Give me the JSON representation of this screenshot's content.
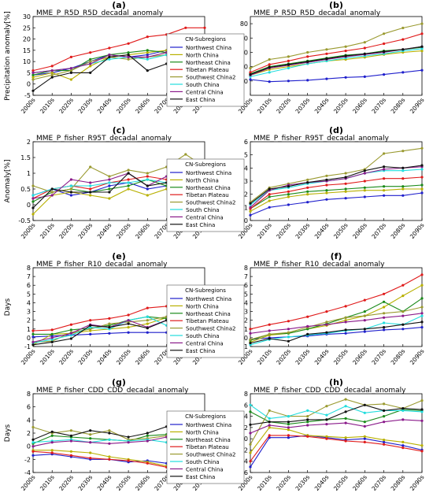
{
  "regions": [
    "Northwest China",
    "North China",
    "Northeast China",
    "Tibetan Plateau",
    "Southwest China2",
    "South China",
    "Central China",
    "East China"
  ],
  "colors": [
    "#1f1fcc",
    "#b8b000",
    "#1a8a1a",
    "#e01a1a",
    "#9a9a30",
    "#22dddd",
    "#8a1a8a",
    "#111111"
  ],
  "legend_title": "CN-Subregions",
  "x_ticks": [
    "2000s",
    "2010s",
    "2020s",
    "2030s",
    "2040s",
    "2050s",
    "2060s",
    "2070s",
    "2080s",
    "2090s"
  ],
  "chart_data": [
    {
      "type": "line",
      "letter": "(a)",
      "title": "MME_P_R5D_R5D_decadal_anomaly",
      "ylabel": "Precipitation anomaly[%]",
      "ylim": [
        -5,
        30
      ],
      "yticks": [
        -5,
        0,
        5,
        10,
        15,
        20,
        25,
        30
      ],
      "legend": false,
      "series": [
        {
          "name": "Northwest China",
          "values": [
            4,
            5,
            7,
            10,
            13,
            12,
            13,
            15,
            15,
            16
          ]
        },
        {
          "name": "North China",
          "values": [
            3,
            5,
            2,
            8,
            12,
            13,
            14,
            15,
            14,
            17
          ]
        },
        {
          "name": "Northeast China",
          "values": [
            4,
            6,
            6,
            11,
            13,
            14,
            15,
            14,
            16,
            18
          ]
        },
        {
          "name": "Tibetan Plateau",
          "values": [
            6,
            8,
            12,
            14,
            16,
            18,
            21,
            22,
            25,
            25
          ]
        },
        {
          "name": "Southwest China2",
          "values": [
            2,
            4,
            6,
            10,
            12,
            11,
            12,
            13,
            14,
            15
          ]
        },
        {
          "name": "South China",
          "values": [
            5,
            6,
            7,
            9,
            11,
            12,
            11,
            13,
            13,
            14
          ]
        },
        {
          "name": "Central China",
          "values": [
            5,
            6,
            7,
            9,
            13,
            12,
            12,
            14,
            14,
            16
          ]
        },
        {
          "name": "East China",
          "values": [
            -3,
            3,
            5,
            5,
            12,
            13,
            6,
            9,
            14,
            13
          ]
        }
      ]
    },
    {
      "type": "line",
      "letter": "(b)",
      "title": "MME_P_R5D_R5D_decadal_anomaly",
      "ylabel": "",
      "ylim": [
        -20,
        90
      ],
      "yticks": [
        0,
        20,
        40,
        60,
        80
      ],
      "legend": true,
      "series": [
        {
          "name": "Northwest China",
          "values": [
            2,
            -1,
            0,
            1,
            3,
            5,
            6,
            9,
            12,
            15
          ]
        },
        {
          "name": "North China",
          "values": [
            8,
            16,
            20,
            24,
            28,
            30,
            33,
            37,
            40,
            42
          ]
        },
        {
          "name": "Northeast China",
          "values": [
            10,
            20,
            24,
            28,
            32,
            36,
            38,
            42,
            44,
            47
          ]
        },
        {
          "name": "Tibetan Plateau",
          "values": [
            12,
            23,
            28,
            34,
            38,
            42,
            46,
            52,
            58,
            66
          ]
        },
        {
          "name": "Southwest China2",
          "values": [
            18,
            30,
            34,
            40,
            44,
            48,
            54,
            66,
            74,
            80
          ]
        },
        {
          "name": "South China",
          "values": [
            6,
            12,
            18,
            24,
            28,
            32,
            35,
            38,
            42,
            45
          ]
        },
        {
          "name": "Central China",
          "values": [
            8,
            18,
            22,
            26,
            30,
            34,
            37,
            40,
            44,
            48
          ]
        },
        {
          "name": "East China",
          "values": [
            9,
            19,
            23,
            27,
            31,
            35,
            38,
            41,
            44,
            48
          ]
        }
      ]
    },
    {
      "type": "line",
      "letter": "(c)",
      "title": "MME_P_fisher_R95T_decadal_anomaly",
      "ylabel": "Anomaly[%]",
      "ylim": [
        -0.5,
        2.0
      ],
      "yticks": [
        -0.5,
        0.0,
        0.5,
        1.0,
        1.5,
        2.0
      ],
      "legend": false,
      "series": [
        {
          "name": "Northwest China",
          "values": [
            0.3,
            0.5,
            0.3,
            0.4,
            0.6,
            0.7,
            0.5,
            0.6,
            0.7,
            0.7
          ]
        },
        {
          "name": "North China",
          "values": [
            -0.3,
            0.3,
            0.4,
            0.3,
            0.2,
            0.5,
            0.3,
            0.5,
            0.4,
            0.2
          ]
        },
        {
          "name": "Northeast China",
          "values": [
            0.1,
            0.4,
            0.5,
            0.4,
            0.5,
            0.6,
            0.8,
            0.6,
            0.7,
            0.9
          ]
        },
        {
          "name": "Tibetan Plateau",
          "values": [
            0.2,
            0.5,
            0.6,
            0.5,
            0.7,
            0.8,
            0.9,
            0.8,
            0.8,
            0.8
          ]
        },
        {
          "name": "Southwest China2",
          "values": [
            0.6,
            0.4,
            0.5,
            1.2,
            0.9,
            1.1,
            1.0,
            1.2,
            1.6,
            1.2
          ]
        },
        {
          "name": "South China",
          "values": [
            0.3,
            0.5,
            0.6,
            0.6,
            0.7,
            0.7,
            0.8,
            0.7,
            0.8,
            0.8
          ]
        },
        {
          "name": "Central China",
          "values": [
            0.2,
            0.3,
            0.8,
            0.7,
            0.8,
            1.0,
            0.6,
            0.9,
            0.8,
            0.8
          ]
        },
        {
          "name": "East China",
          "values": [
            -0.1,
            0.5,
            0.4,
            0.4,
            0.4,
            1.0,
            0.6,
            0.7,
            0.8,
            1.2
          ]
        }
      ]
    },
    {
      "type": "line",
      "letter": "(d)",
      "title": "MME_P_fisher_R95T_decadal_anomaly",
      "ylabel": "",
      "ylim": [
        0,
        6
      ],
      "yticks": [
        0,
        1,
        2,
        3,
        4,
        5,
        6
      ],
      "legend": true,
      "series": [
        {
          "name": "Northwest China",
          "values": [
            0.4,
            1.0,
            1.2,
            1.4,
            1.6,
            1.7,
            1.8,
            1.9,
            1.9,
            2.1
          ]
        },
        {
          "name": "North China",
          "values": [
            0.7,
            1.5,
            1.8,
            2.0,
            2.1,
            2.2,
            2.3,
            2.3,
            2.4,
            2.4
          ]
        },
        {
          "name": "Northeast China",
          "values": [
            0.9,
            1.8,
            2.0,
            2.2,
            2.3,
            2.4,
            2.5,
            2.6,
            2.6,
            2.7
          ]
        },
        {
          "name": "Tibetan Plateau",
          "values": [
            0.9,
            2.0,
            2.2,
            2.5,
            2.7,
            2.8,
            3.0,
            3.2,
            3.2,
            3.3
          ]
        },
        {
          "name": "Southwest China2",
          "values": [
            1.4,
            2.5,
            2.8,
            3.1,
            3.4,
            3.6,
            3.9,
            5.1,
            5.3,
            5.5
          ]
        },
        {
          "name": "South China",
          "values": [
            1.2,
            2.3,
            2.5,
            2.8,
            3.0,
            3.2,
            3.6,
            3.8,
            3.8,
            3.9
          ]
        },
        {
          "name": "Central China",
          "values": [
            1.0,
            2.3,
            2.7,
            2.9,
            3.0,
            3.2,
            3.6,
            3.9,
            4.0,
            4.1
          ]
        },
        {
          "name": "East China",
          "values": [
            1.3,
            2.4,
            2.6,
            2.9,
            3.1,
            3.3,
            3.8,
            4.1,
            4.0,
            4.2
          ]
        }
      ]
    },
    {
      "type": "line",
      "letter": "(e)",
      "title": "MME_P_fisher_R10_decadal_anomaly",
      "ylabel": "Days",
      "ylim": [
        -1,
        8
      ],
      "yticks": [
        -1,
        0,
        1,
        2,
        3,
        4,
        5,
        6,
        7,
        8
      ],
      "legend": false,
      "series": [
        {
          "name": "Northwest China",
          "values": [
            0.1,
            0.2,
            0.3,
            0.4,
            0.5,
            0.6,
            0.6,
            0.6,
            0.6,
            0.7
          ]
        },
        {
          "name": "North China",
          "values": [
            -0.8,
            0.4,
            0.5,
            0.8,
            1.0,
            1.2,
            1.6,
            2.3,
            2.5,
            2.4
          ]
        },
        {
          "name": "Northeast China",
          "values": [
            0.4,
            0.4,
            0.9,
            1.1,
            1.4,
            2.0,
            2.4,
            2.2,
            2.6,
            2.2
          ]
        },
        {
          "name": "Tibetan Plateau",
          "values": [
            0.8,
            0.9,
            1.5,
            2.0,
            2.2,
            2.6,
            3.4,
            3.6,
            3.8,
            3.8
          ]
        },
        {
          "name": "Southwest China2",
          "values": [
            -0.5,
            -0.4,
            0.6,
            1.0,
            1.6,
            1.8,
            2.0,
            2.4,
            2.6,
            2.6
          ]
        },
        {
          "name": "South China",
          "values": [
            -0.6,
            -0.2,
            0.3,
            1.2,
            1.0,
            2.0,
            2.4,
            1.4,
            2.2,
            1.4
          ]
        },
        {
          "name": "Central China",
          "values": [
            -0.5,
            0.0,
            0.5,
            1.5,
            1.2,
            2.0,
            1.2,
            2.0,
            2.8,
            1.8
          ]
        },
        {
          "name": "East China",
          "values": [
            -0.8,
            -0.5,
            -0.1,
            1.4,
            1.2,
            1.6,
            1.1,
            2.0,
            3.0,
            1.8
          ]
        }
      ]
    },
    {
      "type": "line",
      "letter": "(f)",
      "title": "MME_P_fisher_R10_decadal_anomaly",
      "ylabel": "",
      "ylim": [
        -1,
        8
      ],
      "yticks": [
        -1,
        0,
        1,
        2,
        3,
        4,
        5,
        6,
        7,
        8
      ],
      "legend": true,
      "series": [
        {
          "name": "Northwest China",
          "values": [
            -0.2,
            0.0,
            0.1,
            0.2,
            0.4,
            0.5,
            0.7,
            0.9,
            1.0,
            1.2
          ]
        },
        {
          "name": "North China",
          "values": [
            -0.5,
            0.3,
            0.5,
            1.0,
            1.4,
            2.0,
            2.5,
            3.5,
            4.8,
            6.0
          ]
        },
        {
          "name": "Northeast China",
          "values": [
            -0.3,
            0.4,
            0.5,
            1.0,
            1.6,
            2.3,
            3.0,
            4.1,
            3.0,
            4.5
          ]
        },
        {
          "name": "Tibetan Plateau",
          "values": [
            1.0,
            1.5,
            1.9,
            2.4,
            3.0,
            3.6,
            4.3,
            5.0,
            6.0,
            7.2
          ]
        },
        {
          "name": "Southwest China2",
          "values": [
            -0.2,
            0.4,
            0.6,
            1.2,
            1.8,
            2.3,
            2.5,
            2.8,
            3.0,
            3.5
          ]
        },
        {
          "name": "South China",
          "values": [
            -0.8,
            -0.2,
            0.1,
            0.3,
            0.5,
            0.8,
            1.0,
            1.7,
            1.5,
            2.5
          ]
        },
        {
          "name": "Central China",
          "values": [
            0.5,
            0.8,
            1.0,
            1.3,
            1.5,
            1.8,
            2.0,
            2.3,
            2.5,
            2.8
          ]
        },
        {
          "name": "East China",
          "values": [
            -0.6,
            -0.1,
            -0.4,
            0.4,
            0.6,
            0.9,
            1.0,
            1.2,
            1.5,
            1.8
          ]
        }
      ]
    },
    {
      "type": "line",
      "letter": "(g)",
      "title": "MME_P_fisher_CDD_CDD_decadal_anomaly",
      "ylabel": "Days",
      "ylim": [
        -4,
        8
      ],
      "yticks": [
        -4,
        -2,
        0,
        2,
        4,
        6,
        8
      ],
      "legend": false,
      "series": [
        {
          "name": "Northwest China",
          "values": [
            -1.4,
            -1.2,
            -1.6,
            -2.0,
            -2.0,
            -2.4,
            -2.2,
            -2.6,
            -2.8,
            -3.0
          ]
        },
        {
          "name": "North China",
          "values": [
            -0.6,
            -0.6,
            -0.8,
            -1.0,
            -1.6,
            -2.0,
            -2.4,
            -3.0,
            -2.6,
            -3.2
          ]
        },
        {
          "name": "Northeast China",
          "values": [
            0.4,
            1.6,
            1.4,
            1.2,
            1.0,
            0.8,
            1.6,
            1.8,
            1.2,
            1.2
          ]
        },
        {
          "name": "Tibetan Plateau",
          "values": [
            -0.8,
            -1.0,
            -1.4,
            -1.8,
            -2.0,
            -2.2,
            -2.6,
            -3.2,
            -3.0,
            -3.4
          ]
        },
        {
          "name": "Southwest China2",
          "values": [
            2.9,
            2.0,
            2.4,
            1.8,
            2.4,
            1.0,
            1.2,
            1.6,
            1.3,
            1.4
          ]
        },
        {
          "name": "South China",
          "values": [
            0.6,
            0.8,
            1.0,
            0.6,
            1.0,
            0.8,
            1.0,
            0.6,
            0.8,
            1.0
          ]
        },
        {
          "name": "Central China",
          "values": [
            0.0,
            0.6,
            0.8,
            0.6,
            0.4,
            0.6,
            0.8,
            1.4,
            1.0,
            0.8
          ]
        },
        {
          "name": "East China",
          "values": [
            1.0,
            2.2,
            1.6,
            2.4,
            2.0,
            1.4,
            2.0,
            3.0,
            1.6,
            1.4
          ]
        }
      ]
    },
    {
      "type": "line",
      "letter": "(h)",
      "title": "MME_P_fisher_CDD_CDD_decadal_anomaly",
      "ylabel": "",
      "ylim": [
        -6,
        8
      ],
      "yticks": [
        -6,
        -4,
        -2,
        0,
        2,
        4,
        6,
        8
      ],
      "legend": true,
      "series": [
        {
          "name": "Northwest China",
          "values": [
            -5.0,
            0.2,
            0.2,
            0.6,
            0.2,
            -0.2,
            0.0,
            -0.6,
            -1.2,
            -2.0
          ]
        },
        {
          "name": "North China",
          "values": [
            -2.5,
            2.0,
            1.6,
            0.6,
            0.4,
            0.2,
            0.4,
            -0.2,
            -0.6,
            -1.2
          ]
        },
        {
          "name": "Northeast China",
          "values": [
            4.8,
            3.0,
            2.6,
            3.0,
            3.4,
            3.6,
            3.0,
            4.0,
            5.2,
            5.0
          ]
        },
        {
          "name": "Tibetan Plateau",
          "values": [
            -4.0,
            0.6,
            0.6,
            0.4,
            0.0,
            -0.4,
            -0.6,
            -1.0,
            -1.6,
            -2.2
          ]
        },
        {
          "name": "Southwest China2",
          "values": [
            -1.0,
            5.0,
            4.0,
            4.0,
            5.8,
            7.0,
            6.0,
            6.2,
            5.4,
            6.8
          ]
        },
        {
          "name": "South China",
          "values": [
            6.0,
            3.6,
            4.0,
            5.0,
            4.2,
            5.8,
            4.6,
            5.0,
            5.0,
            4.8
          ]
        },
        {
          "name": "Central China",
          "values": [
            1.0,
            2.4,
            2.0,
            2.4,
            2.6,
            2.8,
            2.2,
            3.0,
            3.4,
            3.2
          ]
        },
        {
          "name": "East China",
          "values": [
            2.5,
            3.0,
            3.0,
            3.4,
            3.4,
            4.8,
            6.0,
            5.0,
            5.4,
            5.2
          ]
        }
      ]
    }
  ]
}
